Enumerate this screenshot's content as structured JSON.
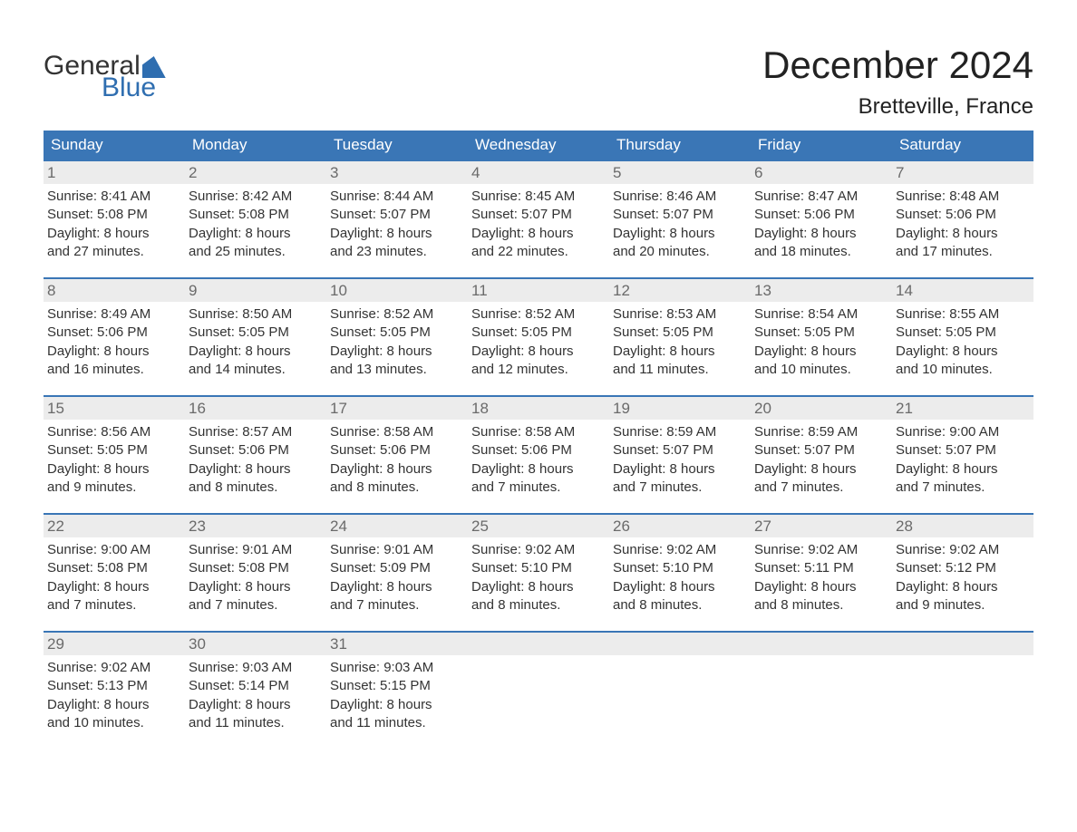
{
  "brand": {
    "line1": "General",
    "line2": "Blue"
  },
  "title": "December 2024",
  "location": "Bretteville, France",
  "colors": {
    "header_bg": "#3a76b6",
    "header_text": "#ffffff",
    "week_border": "#3a76b6",
    "daynum_bg": "#ececec",
    "daynum_text": "#6a6a6a",
    "body_text": "#333333",
    "brand_blue": "#2f6eb0",
    "page_bg": "#ffffff"
  },
  "typography": {
    "title_fontsize": 42,
    "location_fontsize": 24,
    "weekday_fontsize": 17,
    "daynum_fontsize": 17,
    "body_fontsize": 15,
    "font_family": "Arial"
  },
  "layout": {
    "columns": 7,
    "rows": 5
  },
  "weekdays": [
    "Sunday",
    "Monday",
    "Tuesday",
    "Wednesday",
    "Thursday",
    "Friday",
    "Saturday"
  ],
  "weeks": [
    [
      {
        "n": "1",
        "sunrise": "Sunrise: 8:41 AM",
        "sunset": "Sunset: 5:08 PM",
        "d1": "Daylight: 8 hours",
        "d2": "and 27 minutes."
      },
      {
        "n": "2",
        "sunrise": "Sunrise: 8:42 AM",
        "sunset": "Sunset: 5:08 PM",
        "d1": "Daylight: 8 hours",
        "d2": "and 25 minutes."
      },
      {
        "n": "3",
        "sunrise": "Sunrise: 8:44 AM",
        "sunset": "Sunset: 5:07 PM",
        "d1": "Daylight: 8 hours",
        "d2": "and 23 minutes."
      },
      {
        "n": "4",
        "sunrise": "Sunrise: 8:45 AM",
        "sunset": "Sunset: 5:07 PM",
        "d1": "Daylight: 8 hours",
        "d2": "and 22 minutes."
      },
      {
        "n": "5",
        "sunrise": "Sunrise: 8:46 AM",
        "sunset": "Sunset: 5:07 PM",
        "d1": "Daylight: 8 hours",
        "d2": "and 20 minutes."
      },
      {
        "n": "6",
        "sunrise": "Sunrise: 8:47 AM",
        "sunset": "Sunset: 5:06 PM",
        "d1": "Daylight: 8 hours",
        "d2": "and 18 minutes."
      },
      {
        "n": "7",
        "sunrise": "Sunrise: 8:48 AM",
        "sunset": "Sunset: 5:06 PM",
        "d1": "Daylight: 8 hours",
        "d2": "and 17 minutes."
      }
    ],
    [
      {
        "n": "8",
        "sunrise": "Sunrise: 8:49 AM",
        "sunset": "Sunset: 5:06 PM",
        "d1": "Daylight: 8 hours",
        "d2": "and 16 minutes."
      },
      {
        "n": "9",
        "sunrise": "Sunrise: 8:50 AM",
        "sunset": "Sunset: 5:05 PM",
        "d1": "Daylight: 8 hours",
        "d2": "and 14 minutes."
      },
      {
        "n": "10",
        "sunrise": "Sunrise: 8:52 AM",
        "sunset": "Sunset: 5:05 PM",
        "d1": "Daylight: 8 hours",
        "d2": "and 13 minutes."
      },
      {
        "n": "11",
        "sunrise": "Sunrise: 8:52 AM",
        "sunset": "Sunset: 5:05 PM",
        "d1": "Daylight: 8 hours",
        "d2": "and 12 minutes."
      },
      {
        "n": "12",
        "sunrise": "Sunrise: 8:53 AM",
        "sunset": "Sunset: 5:05 PM",
        "d1": "Daylight: 8 hours",
        "d2": "and 11 minutes."
      },
      {
        "n": "13",
        "sunrise": "Sunrise: 8:54 AM",
        "sunset": "Sunset: 5:05 PM",
        "d1": "Daylight: 8 hours",
        "d2": "and 10 minutes."
      },
      {
        "n": "14",
        "sunrise": "Sunrise: 8:55 AM",
        "sunset": "Sunset: 5:05 PM",
        "d1": "Daylight: 8 hours",
        "d2": "and 10 minutes."
      }
    ],
    [
      {
        "n": "15",
        "sunrise": "Sunrise: 8:56 AM",
        "sunset": "Sunset: 5:05 PM",
        "d1": "Daylight: 8 hours",
        "d2": "and 9 minutes."
      },
      {
        "n": "16",
        "sunrise": "Sunrise: 8:57 AM",
        "sunset": "Sunset: 5:06 PM",
        "d1": "Daylight: 8 hours",
        "d2": "and 8 minutes."
      },
      {
        "n": "17",
        "sunrise": "Sunrise: 8:58 AM",
        "sunset": "Sunset: 5:06 PM",
        "d1": "Daylight: 8 hours",
        "d2": "and 8 minutes."
      },
      {
        "n": "18",
        "sunrise": "Sunrise: 8:58 AM",
        "sunset": "Sunset: 5:06 PM",
        "d1": "Daylight: 8 hours",
        "d2": "and 7 minutes."
      },
      {
        "n": "19",
        "sunrise": "Sunrise: 8:59 AM",
        "sunset": "Sunset: 5:07 PM",
        "d1": "Daylight: 8 hours",
        "d2": "and 7 minutes."
      },
      {
        "n": "20",
        "sunrise": "Sunrise: 8:59 AM",
        "sunset": "Sunset: 5:07 PM",
        "d1": "Daylight: 8 hours",
        "d2": "and 7 minutes."
      },
      {
        "n": "21",
        "sunrise": "Sunrise: 9:00 AM",
        "sunset": "Sunset: 5:07 PM",
        "d1": "Daylight: 8 hours",
        "d2": "and 7 minutes."
      }
    ],
    [
      {
        "n": "22",
        "sunrise": "Sunrise: 9:00 AM",
        "sunset": "Sunset: 5:08 PM",
        "d1": "Daylight: 8 hours",
        "d2": "and 7 minutes."
      },
      {
        "n": "23",
        "sunrise": "Sunrise: 9:01 AM",
        "sunset": "Sunset: 5:08 PM",
        "d1": "Daylight: 8 hours",
        "d2": "and 7 minutes."
      },
      {
        "n": "24",
        "sunrise": "Sunrise: 9:01 AM",
        "sunset": "Sunset: 5:09 PM",
        "d1": "Daylight: 8 hours",
        "d2": "and 7 minutes."
      },
      {
        "n": "25",
        "sunrise": "Sunrise: 9:02 AM",
        "sunset": "Sunset: 5:10 PM",
        "d1": "Daylight: 8 hours",
        "d2": "and 8 minutes."
      },
      {
        "n": "26",
        "sunrise": "Sunrise: 9:02 AM",
        "sunset": "Sunset: 5:10 PM",
        "d1": "Daylight: 8 hours",
        "d2": "and 8 minutes."
      },
      {
        "n": "27",
        "sunrise": "Sunrise: 9:02 AM",
        "sunset": "Sunset: 5:11 PM",
        "d1": "Daylight: 8 hours",
        "d2": "and 8 minutes."
      },
      {
        "n": "28",
        "sunrise": "Sunrise: 9:02 AM",
        "sunset": "Sunset: 5:12 PM",
        "d1": "Daylight: 8 hours",
        "d2": "and 9 minutes."
      }
    ],
    [
      {
        "n": "29",
        "sunrise": "Sunrise: 9:02 AM",
        "sunset": "Sunset: 5:13 PM",
        "d1": "Daylight: 8 hours",
        "d2": "and 10 minutes."
      },
      {
        "n": "30",
        "sunrise": "Sunrise: 9:03 AM",
        "sunset": "Sunset: 5:14 PM",
        "d1": "Daylight: 8 hours",
        "d2": "and 11 minutes."
      },
      {
        "n": "31",
        "sunrise": "Sunrise: 9:03 AM",
        "sunset": "Sunset: 5:15 PM",
        "d1": "Daylight: 8 hours",
        "d2": "and 11 minutes."
      },
      {
        "empty": true
      },
      {
        "empty": true
      },
      {
        "empty": true
      },
      {
        "empty": true
      }
    ]
  ]
}
